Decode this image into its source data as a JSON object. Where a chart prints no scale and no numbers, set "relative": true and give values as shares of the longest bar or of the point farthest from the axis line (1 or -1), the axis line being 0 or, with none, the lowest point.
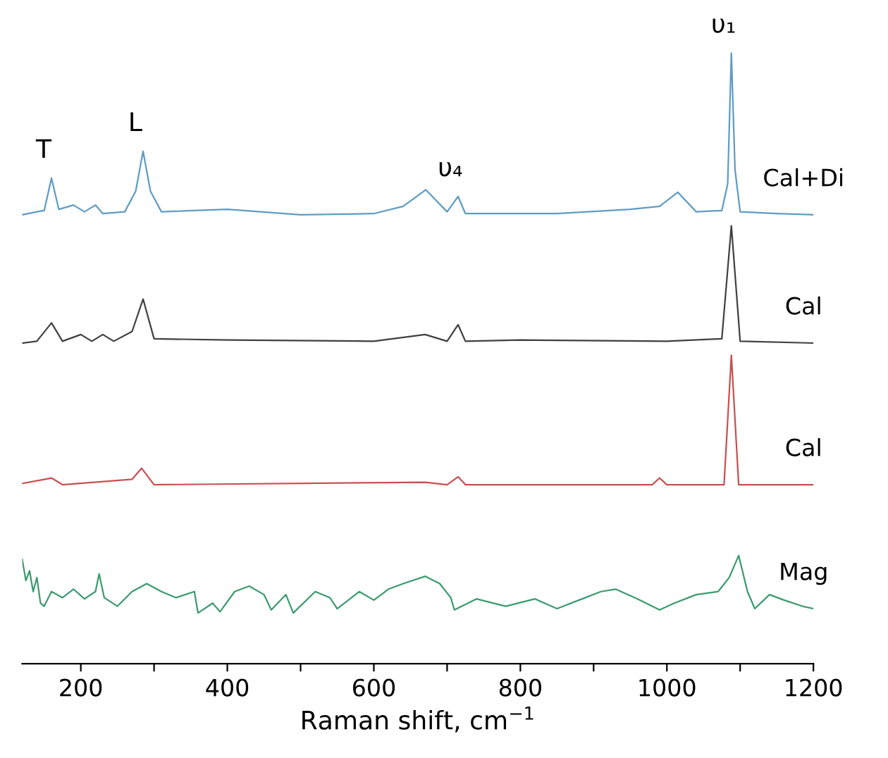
{
  "chart_data": {
    "type": "line",
    "relative": true,
    "xlabel": "Raman shift, cm$^{−1}$",
    "xlim": [
      120,
      1200
    ],
    "xticks": [
      200,
      {
        "value": 300,
        "label": null
      },
      400,
      {
        "value": 500,
        "label": null
      },
      600,
      {
        "value": 700,
        "label": null
      },
      800,
      {
        "value": 900,
        "label": null
      },
      1000,
      {
        "value": 1100,
        "label": null
      },
      1200
    ],
    "tick_labels": "x",
    "grid": false,
    "legend": false,
    "marker": "none",
    "line_style": "solid",
    "annotations": [
      {
        "text": "T",
        "x": 160,
        "y": 0.795
      },
      {
        "text": "L",
        "x": 285,
        "y": 0.839
      },
      {
        "text": "υ₄",
        "x": 715,
        "y": 0.765
      },
      {
        "text": "υ₁",
        "x": 1088,
        "y": 1.0
      }
    ],
    "series": [
      {
        "name": "Cal+Di",
        "color": "#5e9cc4",
        "x": [
          120,
          140,
          150,
          160,
          170,
          190,
          205,
          220,
          230,
          260,
          275,
          285,
          295,
          310,
          400,
          500,
          600,
          640,
          671,
          700,
          715,
          725,
          850,
          950,
          990,
          1015,
          1040,
          1075,
          1083,
          1088,
          1093,
          1100,
          1150,
          1200
        ],
        "values": [
          0.735,
          0.74,
          0.742,
          0.795,
          0.744,
          0.751,
          0.74,
          0.751,
          0.737,
          0.74,
          0.774,
          0.839,
          0.774,
          0.74,
          0.744,
          0.735,
          0.737,
          0.749,
          0.776,
          0.74,
          0.765,
          0.737,
          0.737,
          0.744,
          0.749,
          0.772,
          0.74,
          0.742,
          0.786,
          1.0,
          0.809,
          0.74,
          0.737,
          0.735
        ]
      },
      {
        "name": "Cal",
        "color": "#404040",
        "x": [
          120,
          140,
          160,
          175,
          200,
          215,
          230,
          245,
          270,
          285,
          300,
          400,
          600,
          670,
          700,
          715,
          725,
          800,
          1000,
          1075,
          1088,
          1100,
          1200
        ],
        "values": [
          0.525,
          0.528,
          0.558,
          0.528,
          0.539,
          0.528,
          0.539,
          0.528,
          0.544,
          0.597,
          0.532,
          0.53,
          0.528,
          0.539,
          0.528,
          0.555,
          0.528,
          0.53,
          0.528,
          0.532,
          0.717,
          0.528,
          0.525
        ]
      },
      {
        "name": "Cal",
        "color": "#c85050",
        "x": [
          120,
          160,
          175,
          270,
          283,
          300,
          670,
          700,
          715,
          725,
          980,
          990,
          1000,
          1078,
          1088,
          1098,
          1200
        ],
        "values": [
          0.295,
          0.304,
          0.293,
          0.302,
          0.32,
          0.293,
          0.297,
          0.293,
          0.306,
          0.293,
          0.293,
          0.304,
          0.293,
          0.293,
          0.505,
          0.293,
          0.293
        ]
      },
      {
        "name": "Mag",
        "color": "#3c9a70",
        "x": [
          120,
          125,
          130,
          135,
          140,
          145,
          150,
          160,
          175,
          190,
          205,
          220,
          225,
          232,
          250,
          270,
          290,
          310,
          330,
          355,
          360,
          380,
          390,
          410,
          430,
          450,
          460,
          480,
          490,
          520,
          540,
          550,
          580,
          600,
          620,
          640,
          670,
          690,
          705,
          710,
          740,
          780,
          820,
          850,
          880,
          910,
          930,
          960,
          990,
          1010,
          1040,
          1070,
          1085,
          1098,
          1110,
          1120,
          1140,
          1160,
          1185,
          1200
        ],
        "values": [
          0.171,
          0.136,
          0.152,
          0.118,
          0.141,
          0.099,
          0.094,
          0.118,
          0.108,
          0.122,
          0.106,
          0.118,
          0.147,
          0.108,
          0.094,
          0.118,
          0.131,
          0.118,
          0.108,
          0.118,
          0.083,
          0.099,
          0.085,
          0.118,
          0.127,
          0.113,
          0.088,
          0.113,
          0.083,
          0.118,
          0.108,
          0.09,
          0.118,
          0.104,
          0.122,
          0.131,
          0.143,
          0.131,
          0.108,
          0.088,
          0.106,
          0.094,
          0.106,
          0.09,
          0.104,
          0.118,
          0.122,
          0.106,
          0.088,
          0.099,
          0.113,
          0.118,
          0.141,
          0.177,
          0.118,
          0.09,
          0.113,
          0.104,
          0.094,
          0.09
        ]
      }
    ]
  }
}
